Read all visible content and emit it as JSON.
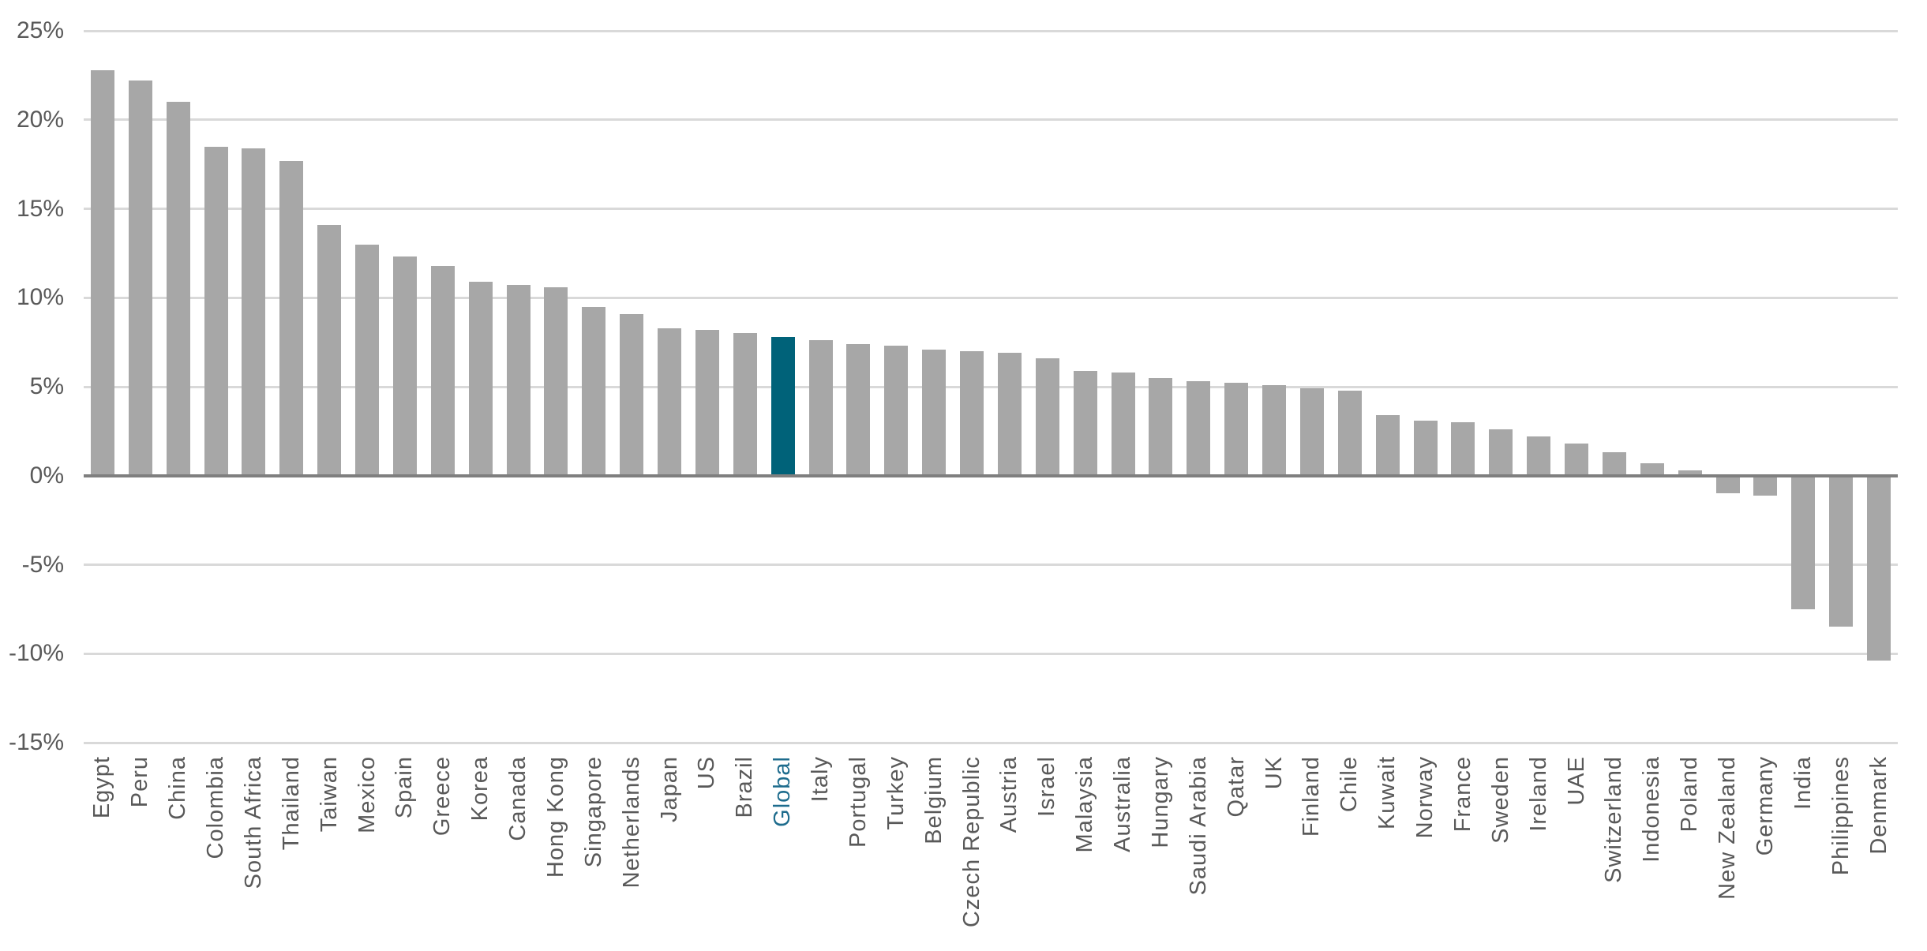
{
  "chart_data": {
    "type": "bar",
    "categories": [
      "Egypt",
      "Peru",
      "China",
      "Colombia",
      "South Africa",
      "Thailand",
      "Taiwan",
      "Mexico",
      "Spain",
      "Greece",
      "Korea",
      "Canada",
      "Hong Kong",
      "Singapore",
      "Netherlands",
      "Japan",
      "US",
      "Brazil",
      "Global",
      "Italy",
      "Portugal",
      "Turkey",
      "Belgium",
      "Czech Republic",
      "Austria",
      "Israel",
      "Malaysia",
      "Australia",
      "Hungary",
      "Saudi Arabia",
      "Qatar",
      "UK",
      "Finland",
      "Chile",
      "Kuwait",
      "Norway",
      "France",
      "Sweden",
      "Ireland",
      "UAE",
      "Switzerland",
      "Indonesia",
      "Poland",
      "New Zealand",
      "Germany",
      "India",
      "Philippines",
      "Denmark"
    ],
    "values": [
      22.8,
      22.2,
      21.0,
      18.5,
      18.4,
      17.7,
      14.1,
      13.0,
      12.3,
      11.8,
      10.9,
      10.7,
      10.6,
      9.5,
      9.1,
      8.3,
      8.2,
      8.0,
      7.8,
      7.6,
      7.4,
      7.3,
      7.1,
      7.0,
      6.9,
      6.6,
      5.9,
      5.8,
      5.5,
      5.3,
      5.2,
      5.1,
      4.9,
      4.8,
      3.4,
      3.1,
      3.0,
      2.6,
      2.2,
      1.8,
      1.3,
      0.7,
      0.3,
      -1.0,
      -1.1,
      -7.5,
      -8.5,
      -10.4
    ],
    "highlight_category": "Global",
    "y_axis": {
      "min": -15,
      "max": 25,
      "tick_step": 5,
      "tick_labels": [
        "25%",
        "20%",
        "15%",
        "10%",
        "5%",
        "0%",
        "-5%",
        "-10%",
        "-15%"
      ]
    },
    "grid": "horizontal",
    "legend": "none",
    "colors": {
      "bar": "#A7A7A7",
      "highlight_bar": "#006279",
      "axis_label": "#595959",
      "highlight_label": "#1E6C8D",
      "gridline": "#D9D9D9",
      "zero_axis": "#7F7F7F",
      "background": "#FFFFFF"
    }
  }
}
